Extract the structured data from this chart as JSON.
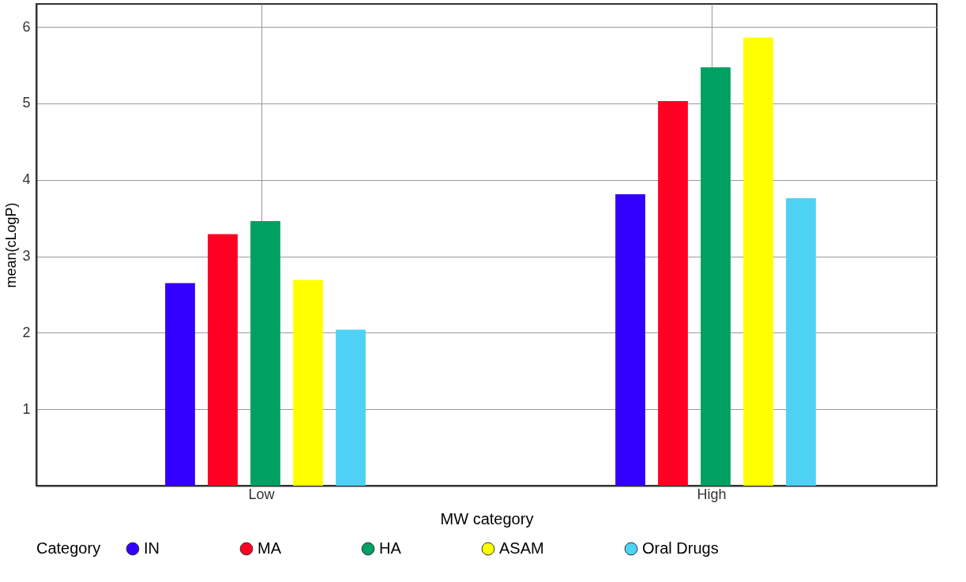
{
  "chart_data": {
    "type": "bar",
    "xlabel": "MW category",
    "ylabel": "mean(cLogP)",
    "legend_title": "Category",
    "categories": [
      "Low",
      "High"
    ],
    "series": [
      {
        "name": "IN",
        "color": "#3300ff",
        "values": [
          2.65,
          3.81
        ]
      },
      {
        "name": "MA",
        "color": "#ff0022",
        "values": [
          3.29,
          5.03
        ]
      },
      {
        "name": "HA",
        "color": "#00a060",
        "values": [
          3.46,
          5.47
        ]
      },
      {
        "name": "ASAM",
        "color": "#ffff00",
        "values": [
          2.69,
          5.86
        ]
      },
      {
        "name": "Oral Drugs",
        "color": "#4dd2f5",
        "values": [
          2.04,
          3.76
        ]
      }
    ],
    "ylim": [
      0,
      6.3
    ],
    "yticks": [
      1,
      2,
      3,
      4,
      5,
      6
    ],
    "grid": true,
    "legend": "bottom"
  }
}
